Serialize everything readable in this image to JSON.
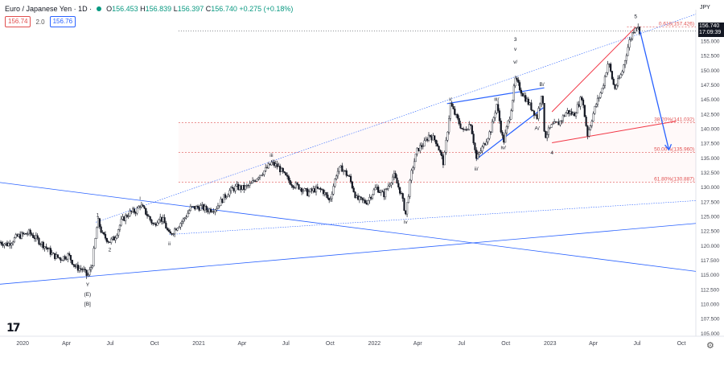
{
  "header": {
    "symbol_title": "Euro / Japanese Yen · 1D ·",
    "ohlc": [
      {
        "k": "O",
        "v": "156.453"
      },
      {
        "k": "H",
        "v": "156.839"
      },
      {
        "k": "L",
        "v": "156.397"
      },
      {
        "k": "C",
        "v": "156.740"
      },
      {
        "k": "",
        "v": "+0.275 (+0.18%)"
      }
    ],
    "bid": "156.74",
    "spread": "2.0",
    "ask": "156.76"
  },
  "currency": "JPY",
  "last_price": {
    "value": "156.740",
    "countdown": "17:09:39"
  },
  "chart_data": {
    "type": "line",
    "title": "",
    "xlabel": "",
    "ylabel": "",
    "x_range": [
      "2019-11-15",
      "2023-10-31"
    ],
    "ylim": [
      104.5,
      159.0
    ],
    "y_ticks": [
      105,
      107.5,
      110,
      112.5,
      115,
      117.5,
      120,
      122.5,
      125,
      127.5,
      130,
      132.5,
      135,
      137.5,
      140,
      142.5,
      145,
      147.5,
      150,
      152.5,
      155,
      157.5
    ],
    "x_ticks": [
      {
        "d": "2020-01-01",
        "label": "2020"
      },
      {
        "d": "2020-04-01",
        "label": "Apr"
      },
      {
        "d": "2020-07-01",
        "label": "Jul"
      },
      {
        "d": "2020-10-01",
        "label": "Oct"
      },
      {
        "d": "2021-01-01",
        "label": "2021"
      },
      {
        "d": "2021-04-01",
        "label": "Apr"
      },
      {
        "d": "2021-07-01",
        "label": "Jul"
      },
      {
        "d": "2021-10-01",
        "label": "Oct"
      },
      {
        "d": "2022-01-01",
        "label": "2022"
      },
      {
        "d": "2022-04-01",
        "label": "Apr"
      },
      {
        "d": "2022-07-01",
        "label": "Jul"
      },
      {
        "d": "2022-10-01",
        "label": "Oct"
      },
      {
        "d": "2023-01-01",
        "label": "2023"
      },
      {
        "d": "2023-04-01",
        "label": "Apr"
      },
      {
        "d": "2023-07-01",
        "label": "Jul"
      },
      {
        "d": "2023-10-01",
        "label": "Oct"
      }
    ],
    "series": [
      {
        "values": [
          [
            "2019-11-15",
            120.6
          ],
          [
            "2019-12-01",
            120.2
          ],
          [
            "2019-12-20",
            121.5
          ],
          [
            "2020-01-15",
            122.2
          ],
          [
            "2020-02-01",
            121.0
          ],
          [
            "2020-02-20",
            119.6
          ],
          [
            "2020-03-05",
            118.3
          ],
          [
            "2020-03-20",
            117.8
          ],
          [
            "2020-04-05",
            118.4
          ],
          [
            "2020-04-20",
            116.3
          ],
          [
            "2020-05-05",
            115.9
          ],
          [
            "2020-05-15",
            114.7
          ],
          [
            "2020-05-25",
            117.0
          ],
          [
            "2020-06-05",
            124.4
          ],
          [
            "2020-06-15",
            121.8
          ],
          [
            "2020-06-30",
            120.7
          ],
          [
            "2020-07-10",
            121.3
          ],
          [
            "2020-07-25",
            124.3
          ],
          [
            "2020-08-10",
            125.6
          ],
          [
            "2020-08-25",
            126.0
          ],
          [
            "2020-09-01",
            127.0
          ],
          [
            "2020-09-15",
            125.4
          ],
          [
            "2020-09-30",
            123.4
          ],
          [
            "2020-10-10",
            124.9
          ],
          [
            "2020-10-20",
            124.2
          ],
          [
            "2020-11-01",
            121.7
          ],
          [
            "2020-11-15",
            123.1
          ],
          [
            "2020-12-01",
            124.5
          ],
          [
            "2020-12-15",
            126.4
          ],
          [
            "2021-01-05",
            126.6
          ],
          [
            "2021-01-20",
            126.1
          ],
          [
            "2021-02-05",
            126.4
          ],
          [
            "2021-02-20",
            128.0
          ],
          [
            "2021-03-05",
            129.3
          ],
          [
            "2021-03-20",
            130.0
          ],
          [
            "2021-04-05",
            129.8
          ],
          [
            "2021-04-20",
            130.5
          ],
          [
            "2021-05-05",
            132.0
          ],
          [
            "2021-05-20",
            133.0
          ],
          [
            "2021-06-01",
            134.1
          ],
          [
            "2021-06-15",
            133.5
          ],
          [
            "2021-06-30",
            131.8
          ],
          [
            "2021-07-15",
            130.5
          ],
          [
            "2021-07-30",
            130.0
          ],
          [
            "2021-08-15",
            129.0
          ],
          [
            "2021-08-30",
            129.6
          ],
          [
            "2021-09-15",
            129.5
          ],
          [
            "2021-09-30",
            127.6
          ],
          [
            "2021-10-15",
            132.6
          ],
          [
            "2021-10-25",
            133.3
          ],
          [
            "2021-11-10",
            131.6
          ],
          [
            "2021-11-25",
            128.0
          ],
          [
            "2021-12-15",
            127.4
          ],
          [
            "2022-01-05",
            130.0
          ],
          [
            "2022-01-20",
            128.6
          ],
          [
            "2022-02-10",
            132.1
          ],
          [
            "2022-02-25",
            129.0
          ],
          [
            "2022-03-07",
            125.4
          ],
          [
            "2022-03-20",
            133.0
          ],
          [
            "2022-04-01",
            136.5
          ],
          [
            "2022-04-15",
            137.5
          ],
          [
            "2022-04-25",
            139.0
          ],
          [
            "2022-05-10",
            137.8
          ],
          [
            "2022-05-25",
            134.0
          ],
          [
            "2022-06-08",
            144.2
          ],
          [
            "2022-06-20",
            142.0
          ],
          [
            "2022-07-05",
            139.5
          ],
          [
            "2022-07-20",
            141.0
          ],
          [
            "2022-08-01",
            134.8
          ],
          [
            "2022-08-15",
            137.0
          ],
          [
            "2022-09-01",
            140.0
          ],
          [
            "2022-09-12",
            144.2
          ],
          [
            "2022-09-26",
            137.6
          ],
          [
            "2022-10-10",
            142.5
          ],
          [
            "2022-10-21",
            148.4
          ],
          [
            "2022-11-05",
            146.0
          ],
          [
            "2022-11-20",
            144.0
          ],
          [
            "2022-12-05",
            142.0
          ],
          [
            "2022-12-15",
            146.5
          ],
          [
            "2022-12-21",
            138.6
          ],
          [
            "2023-01-05",
            140.5
          ],
          [
            "2023-01-20",
            141.0
          ],
          [
            "2023-02-05",
            143.0
          ],
          [
            "2023-02-20",
            142.4
          ],
          [
            "2023-03-08",
            145.5
          ],
          [
            "2023-03-20",
            139.0
          ],
          [
            "2023-04-05",
            143.8
          ],
          [
            "2023-04-20",
            147.0
          ],
          [
            "2023-05-02",
            151.5
          ],
          [
            "2023-05-15",
            146.8
          ],
          [
            "2023-05-30",
            149.5
          ],
          [
            "2023-06-15",
            155.0
          ],
          [
            "2023-06-28",
            157.8
          ],
          [
            "2023-07-07",
            156.7
          ]
        ]
      }
    ]
  },
  "annotations": {
    "wave_labels": [
      {
        "t": "Y",
        "d": "2020-05-15",
        "p": 114.7,
        "dy": 12
      },
      {
        "t": "(E)",
        "d": "2020-05-15",
        "p": 114.7,
        "dy": 24
      },
      {
        "t": "[B]",
        "d": "2020-05-15",
        "p": 114.7,
        "dy": 36
      },
      {
        "t": "1",
        "d": "2020-06-05",
        "p": 124.4,
        "dy": -4
      },
      {
        "t": "2",
        "d": "2020-06-30",
        "p": 120.7,
        "dy": 12
      },
      {
        "t": "i",
        "d": "2020-09-01",
        "p": 127.0,
        "dy": -6
      },
      {
        "t": "ii",
        "d": "2020-11-01",
        "p": 121.7,
        "dy": 12
      },
      {
        "t": "iii",
        "d": "2021-06-01",
        "p": 134.1,
        "dy": -8
      },
      {
        "t": "iv",
        "d": "2022-03-07",
        "p": 125.4,
        "dy": 12
      },
      {
        "t": "i/",
        "d": "2022-06-08",
        "p": 144.2,
        "dy": -4
      },
      {
        "t": "ii/",
        "d": "2022-08-01",
        "p": 134.8,
        "dy": 14
      },
      {
        "t": "iii/",
        "d": "2022-09-12",
        "p": 144.2,
        "dy": -4
      },
      {
        "t": "iv/",
        "d": "2022-09-26",
        "p": 137.6,
        "dy": 8
      },
      {
        "t": "v/",
        "d": "2022-10-21",
        "p": 148.4,
        "dy": -20
      },
      {
        "t": "v",
        "d": "2022-10-21",
        "p": 148.4,
        "dy": -36
      },
      {
        "t": "3",
        "d": "2022-10-21",
        "p": 148.4,
        "dy": -48
      },
      {
        "t": "B/",
        "d": "2022-12-15",
        "p": 146.5,
        "dy": -6
      },
      {
        "t": "A/",
        "d": "2022-12-05",
        "p": 142.0,
        "dy": 16
      },
      {
        "t": "4",
        "d": "2023-01-05",
        "p": 137.5,
        "dy": 14
      },
      {
        "t": "5",
        "d": "2023-06-28",
        "p": 157.8,
        "dy": -8
      }
    ],
    "fib_levels": [
      {
        "label": "0.618(157.426)",
        "value": 157.426,
        "color": "#e04f4f"
      },
      {
        "label": "38.20%(141.032)",
        "value": 141.032,
        "color": "#e04f4f"
      },
      {
        "label": "50.00%(135.960)",
        "value": 135.96,
        "color": "#e04f4f"
      },
      {
        "label": "61.80%(130.887)",
        "value": 130.887,
        "color": "#e04f4f"
      }
    ],
    "colors": {
      "candle": "#131722",
      "blue_line": "#2962ff",
      "red_line": "#f23645",
      "fib": "#e04f4f",
      "projection": "#2962ff"
    }
  }
}
